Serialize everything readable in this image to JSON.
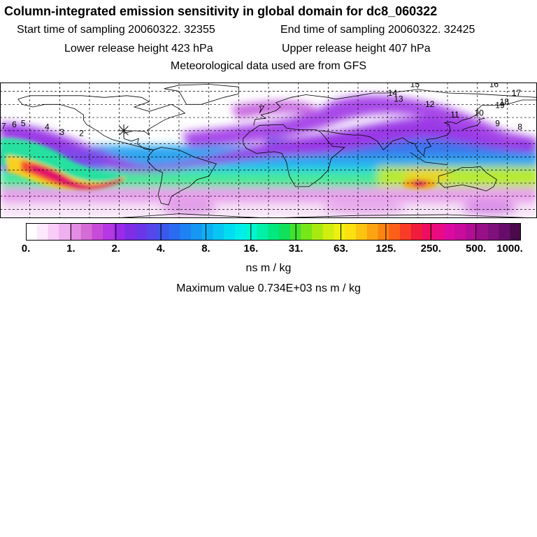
{
  "title": "Column-integrated emission sensitivity in global domain for dc8_060322",
  "start_time": "Start time of sampling 20060322. 32355",
  "end_time": "End time of sampling 20060322. 32425",
  "lower_height": "Lower release height  423 hPa",
  "upper_height": "Upper release height  407 hPa",
  "met_data": "Meteorological data used are from GFS",
  "colorbar": {
    "ticks": [
      "0.",
      "1.",
      "2.",
      "4.",
      "8.",
      "16.",
      "31.",
      "63.",
      "125.",
      "250.",
      "500.",
      "1000."
    ],
    "units": "ns m / kg",
    "colors": [
      "#ffffff",
      "#fde8fd",
      "#f7ccf7",
      "#efb0ef",
      "#e38ce3",
      "#d56cd5",
      "#c84bd8",
      "#b638e4",
      "#9a2be8",
      "#7f2ee6",
      "#6a36e8",
      "#5548ea",
      "#3b58ec",
      "#2a6bf0",
      "#1e82f2",
      "#1597f2",
      "#0eaef2",
      "#08c6f2",
      "#00dcf0",
      "#00eeea",
      "#00f5d0",
      "#00f0a8",
      "#00e880",
      "#10e05a",
      "#40e230",
      "#78e618",
      "#a8ea10",
      "#d0ee10",
      "#eef010",
      "#fce010",
      "#fcc410",
      "#fca410",
      "#fc8410",
      "#fc6018",
      "#f83c28",
      "#f01c3c",
      "#ee0e60",
      "#ea0a84",
      "#dc0aa0",
      "#c80c9c",
      "#b00e94",
      "#981088",
      "#80107c",
      "#680c6c",
      "#4a0a4c"
    ]
  },
  "maximum_value": "Maximum value  0.734E+03 ns m / kg",
  "map": {
    "trajectory_labels": [
      {
        "text": "15",
        "lon": 95,
        "lat": 80
      },
      {
        "text": "16",
        "lon": 148,
        "lat": 80
      },
      {
        "text": "14",
        "lon": 80,
        "lat": 70
      },
      {
        "text": "17",
        "lon": 163,
        "lat": 70
      },
      {
        "text": "13",
        "lon": 84,
        "lat": 63
      },
      {
        "text": "18",
        "lon": 155,
        "lat": 60
      },
      {
        "text": "19",
        "lon": 152,
        "lat": 56
      },
      {
        "text": "12",
        "lon": 105,
        "lat": 57
      },
      {
        "text": "10",
        "lon": 138,
        "lat": 47
      },
      {
        "text": "11",
        "lon": 122,
        "lat": 45
      },
      {
        "text": "9",
        "lon": 152,
        "lat": 35
      },
      {
        "text": "8",
        "lon": 167,
        "lat": 31
      },
      {
        "text": "7",
        "lon": -180,
        "lat": 32
      },
      {
        "text": "6",
        "lon": -172,
        "lat": 34
      },
      {
        "text": "5",
        "lon": -166,
        "lat": 35
      },
      {
        "text": "4",
        "lon": -150,
        "lat": 31
      },
      {
        "text": "3",
        "lon": -140,
        "lat": 25
      },
      {
        "text": "2",
        "lon": -127,
        "lat": 24
      }
    ],
    "release_point": {
      "lon": -97,
      "lat": 30
    },
    "grid": {
      "lon_step": 20,
      "lat_step": 15
    }
  }
}
